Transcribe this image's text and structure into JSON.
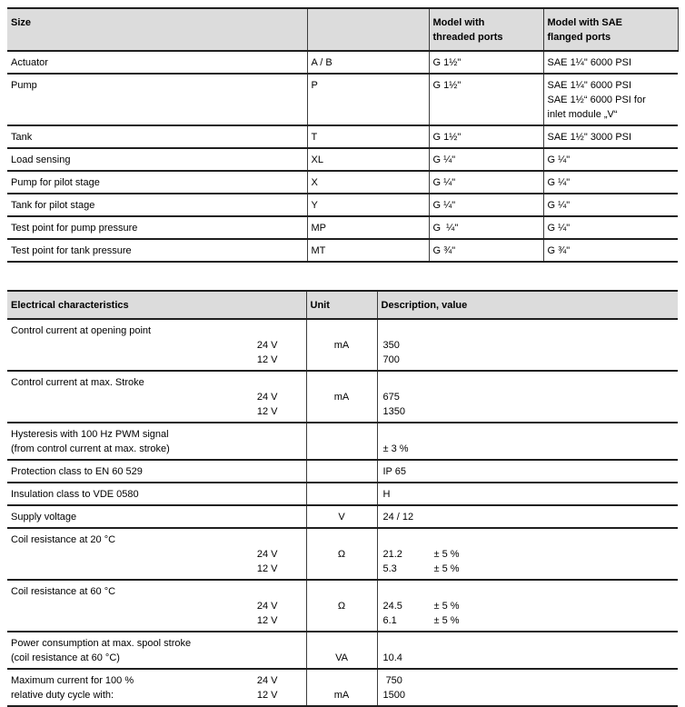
{
  "colors": {
    "header_bg": "#dcdcdc",
    "border": "#1f1f1f",
    "text": "#000000"
  },
  "size_table": {
    "header": [
      "Size",
      "",
      "Model with\nthreaded ports",
      "Model with SAE\nflanged ports"
    ],
    "rows": [
      [
        "Actuator",
        "A / B",
        "G 1½\"",
        "SAE 1¼\" 6000 PSI"
      ],
      [
        "Pump",
        "P",
        "G 1½\"",
        "SAE 1¼\" 6000 PSI\nSAE 1½“ 6000 PSI for\ninlet module „V“"
      ],
      [
        "Tank",
        "T",
        "G 1½\"",
        "SAE 1½\" 3000 PSI"
      ],
      [
        "Load sensing",
        "XL",
        "G ¼\"",
        "G ¼\""
      ],
      [
        "Pump for pilot stage",
        "X",
        "G ¼\"",
        "G ¼\""
      ],
      [
        "Tank for pilot stage",
        "Y",
        "G ¼\"",
        "G ¼\""
      ],
      [
        "Test point for pump pressure",
        "MP",
        "G  ¼\"",
        "G ¼\""
      ],
      [
        "Test point for tank pressure",
        "MT",
        "G ¾\"",
        "G ¾\""
      ]
    ]
  },
  "electrical_table": {
    "header": [
      "Electrical characteristics",
      "Unit",
      "Description, value"
    ],
    "rows": [
      {
        "label_lines": [
          [
            "Control current at opening point",
            ""
          ],
          [
            "",
            "24 V"
          ],
          [
            "",
            "12 V"
          ]
        ],
        "unit_lines": [
          "",
          "mA"
        ],
        "value_lines": [
          [
            "",
            ""
          ],
          [
            "350",
            ""
          ],
          [
            "700",
            ""
          ]
        ]
      },
      {
        "label_lines": [
          [
            "Control current at max. Stroke",
            ""
          ],
          [
            "",
            "24 V"
          ],
          [
            "",
            "12 V"
          ]
        ],
        "unit_lines": [
          "",
          "mA"
        ],
        "value_lines": [
          [
            "",
            ""
          ],
          [
            "675",
            ""
          ],
          [
            "1350",
            ""
          ]
        ]
      },
      {
        "label_lines": [
          [
            "Hysteresis with 100 Hz PWM signal",
            ""
          ],
          [
            "(from control current at max. stroke)",
            ""
          ]
        ],
        "unit_lines": [
          ""
        ],
        "value_lines": [
          [
            "",
            ""
          ],
          [
            "± 3 %",
            ""
          ]
        ]
      },
      {
        "label_lines": [
          [
            "Protection class to EN 60 529",
            ""
          ]
        ],
        "unit_lines": [
          ""
        ],
        "value_lines": [
          [
            "IP 65",
            ""
          ]
        ]
      },
      {
        "label_lines": [
          [
            "Insulation class to VDE 0580",
            ""
          ]
        ],
        "unit_lines": [
          ""
        ],
        "value_lines": [
          [
            "H",
            ""
          ]
        ]
      },
      {
        "label_lines": [
          [
            "Supply voltage",
            ""
          ]
        ],
        "unit_lines": [
          "V"
        ],
        "value_lines": [
          [
            "24 / 12",
            ""
          ]
        ]
      },
      {
        "label_lines": [
          [
            "Coil resistance at 20 °C",
            ""
          ],
          [
            "",
            "24 V"
          ],
          [
            "",
            "12 V"
          ]
        ],
        "unit_lines": [
          "",
          "Ω"
        ],
        "value_lines": [
          [
            "",
            ""
          ],
          [
            "21.2",
            "± 5 %"
          ],
          [
            "5.3",
            "± 5 %"
          ]
        ]
      },
      {
        "label_lines": [
          [
            "Coil resistance at 60 °C",
            ""
          ],
          [
            "",
            "24 V"
          ],
          [
            "",
            "12 V"
          ]
        ],
        "unit_lines": [
          "",
          "Ω"
        ],
        "value_lines": [
          [
            "",
            ""
          ],
          [
            "24.5",
            "± 5 %"
          ],
          [
            "6.1",
            "± 5 %"
          ]
        ]
      },
      {
        "label_lines": [
          [
            "Power consumption at max. spool stroke",
            ""
          ],
          [
            "(coil resistance at 60 °C)",
            ""
          ]
        ],
        "unit_lines": [
          "",
          "VA"
        ],
        "value_lines": [
          [
            "",
            ""
          ],
          [
            "10.4",
            ""
          ]
        ]
      },
      {
        "label_lines": [
          [
            "Maximum current for 100 %",
            "24 V"
          ],
          [
            "relative duty cycle with:",
            "12 V"
          ]
        ],
        "unit_lines": [
          "",
          "mA"
        ],
        "value_lines": [
          [
            " 750",
            ""
          ],
          [
            "1500",
            ""
          ]
        ]
      }
    ]
  }
}
